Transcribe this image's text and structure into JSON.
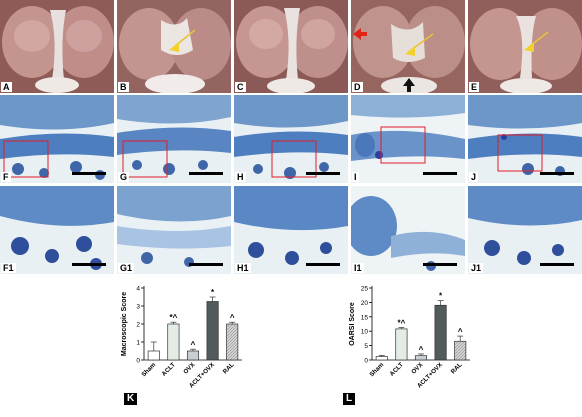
{
  "photo_panels": [
    {
      "label": "A",
      "kind": "photo",
      "arrows": []
    },
    {
      "label": "B",
      "kind": "photo",
      "arrows": [
        "yellow"
      ]
    },
    {
      "label": "C",
      "kind": "photo",
      "arrows": []
    },
    {
      "label": "D",
      "kind": "photo",
      "arrows": [
        "yellow",
        "red",
        "black"
      ]
    },
    {
      "label": "E",
      "kind": "photo",
      "arrows": [
        "yellow"
      ]
    }
  ],
  "histo_row1": [
    {
      "label": "F",
      "box": true
    },
    {
      "label": "G",
      "box": true
    },
    {
      "label": "H",
      "box": true
    },
    {
      "label": "I",
      "box": true
    },
    {
      "label": "J",
      "box": true
    }
  ],
  "histo_row2": [
    {
      "label": "F1"
    },
    {
      "label": "G1"
    },
    {
      "label": "H1"
    },
    {
      "label": "I1"
    },
    {
      "label": "J1"
    }
  ],
  "colors": {
    "sham": "#ffffff",
    "aclt": "#e4ece6",
    "ovx": "#c8cfd3",
    "aclt_ovx": "#515b5c",
    "ral": "#cfcfcf",
    "photo_base": "#b98a86",
    "tissue": "#4f7fbd"
  },
  "chart_data": [
    {
      "type": "bar",
      "panel_label": "K",
      "title": "",
      "xlabel": "",
      "ylabel": "Macroscopic Score",
      "categories": [
        "Sham",
        "ACLT",
        "OVX",
        "ACLT+OVX",
        "RAL"
      ],
      "values": [
        0.5,
        2.0,
        0.5,
        3.25,
        2.0
      ],
      "errors": [
        0.5,
        0.1,
        0.1,
        0.25,
        0.1
      ],
      "annotations": [
        "",
        "*^",
        "^",
        "*",
        "^"
      ],
      "ylim": [
        0,
        4
      ],
      "yticks": [
        "0",
        "1",
        "2",
        "3",
        "4"
      ]
    },
    {
      "type": "bar",
      "panel_label": "L",
      "title": "",
      "xlabel": "",
      "ylabel": "OARSI Score",
      "categories": [
        "Sham",
        "ACLT",
        "OVX",
        "ACLT+OVX",
        "RAL"
      ],
      "values": [
        1.2,
        10.8,
        1.5,
        19.0,
        6.5
      ],
      "errors": [
        0.4,
        0.5,
        0.6,
        1.6,
        1.8
      ],
      "annotations": [
        "",
        "*^",
        "^",
        "*",
        "^"
      ],
      "ylim": [
        0,
        25
      ],
      "yticks": [
        "0",
        "5",
        "10",
        "15",
        "20",
        "25"
      ]
    }
  ]
}
